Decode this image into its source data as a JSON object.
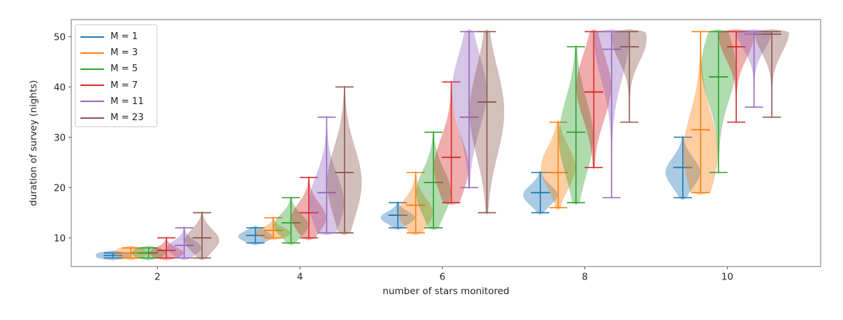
{
  "figure": {
    "background": "#ffffff"
  },
  "chart_data": {
    "type": "violin",
    "title": "",
    "xlabel": "number of stars monitored",
    "ylabel": "duration of survey (nights)",
    "x_ticks": [
      2,
      4,
      6,
      8,
      10
    ],
    "y_ticks": [
      10,
      20,
      30,
      40,
      50
    ],
    "xlim": [
      0.79,
      11.31
    ],
    "ylim": [
      4.3,
      53.4
    ],
    "grid": false,
    "legend_position": "upper left",
    "axis_color": "#8a8a8a",
    "tick_color": "#666666",
    "text_color": "#262626",
    "fill_alpha": 0.38,
    "violin_half_width": 0.24,
    "legend": [
      {
        "label": "M = 1",
        "color": "#1f77b4"
      },
      {
        "label": "M = 3",
        "color": "#ff7f0e"
      },
      {
        "label": "M = 5",
        "color": "#2ca02c"
      },
      {
        "label": "M = 7",
        "color": "#d62728"
      },
      {
        "label": "M = 11",
        "color": "#9467bd"
      },
      {
        "label": "M = 23",
        "color": "#8c564b"
      }
    ],
    "series": [
      {
        "name": "M = 1",
        "color": "#1f77b4",
        "offset": -0.625,
        "violins": [
          {
            "x": 2,
            "min": 6,
            "median": 6.5,
            "max": 7,
            "mode": 6.5
          },
          {
            "x": 4,
            "min": 9,
            "median": 10.5,
            "max": 12,
            "mode": 10.3
          },
          {
            "x": 6,
            "min": 12,
            "median": 14.5,
            "max": 17,
            "mode": 14
          },
          {
            "x": 8,
            "min": 15,
            "median": 19,
            "max": 23,
            "mode": 18.5
          },
          {
            "x": 10,
            "min": 18,
            "median": 24,
            "max": 30,
            "mode": 23
          }
        ]
      },
      {
        "name": "M = 3",
        "color": "#ff7f0e",
        "offset": -0.375,
        "violins": [
          {
            "x": 2,
            "min": 6,
            "median": 7,
            "max": 8,
            "mode": 7
          },
          {
            "x": 4,
            "min": 10,
            "median": 11.5,
            "max": 14,
            "mode": 11
          },
          {
            "x": 6,
            "min": 11,
            "median": 16.5,
            "max": 23,
            "mode": 15
          },
          {
            "x": 8,
            "min": 16,
            "median": 23,
            "max": 33,
            "mode": 24
          },
          {
            "x": 10,
            "min": 19,
            "median": 31.5,
            "max": 51,
            "mode": 27
          }
        ]
      },
      {
        "name": "M = 5",
        "color": "#2ca02c",
        "offset": -0.125,
        "violins": [
          {
            "x": 2,
            "min": 6,
            "median": 7,
            "max": 8,
            "mode": 7
          },
          {
            "x": 4,
            "min": 9,
            "median": 13,
            "max": 18,
            "mode": 12.5
          },
          {
            "x": 6,
            "min": 12,
            "median": 21,
            "max": 31,
            "mode": 19
          },
          {
            "x": 8,
            "min": 17,
            "median": 31,
            "max": 48,
            "mode": 30
          },
          {
            "x": 10,
            "min": 23,
            "median": 42,
            "max": 51,
            "mode": 44
          }
        ]
      },
      {
        "name": "M = 7",
        "color": "#d62728",
        "offset": 0.125,
        "violins": [
          {
            "x": 2,
            "min": 6,
            "median": 7.5,
            "max": 10,
            "mode": 7
          },
          {
            "x": 4,
            "min": 10,
            "median": 15,
            "max": 22,
            "mode": 14
          },
          {
            "x": 6,
            "min": 17,
            "median": 26,
            "max": 41,
            "mode": 24
          },
          {
            "x": 8,
            "min": 24,
            "median": 39,
            "max": 51,
            "mode": 40
          },
          {
            "x": 10,
            "min": 33,
            "median": 48,
            "max": 51,
            "mode": 50
          }
        ]
      },
      {
        "name": "M = 11",
        "color": "#9467bd",
        "offset": 0.375,
        "violins": [
          {
            "x": 2,
            "min": 6,
            "median": 8.5,
            "max": 12,
            "mode": 8
          },
          {
            "x": 4,
            "min": 11,
            "median": 19,
            "max": 34,
            "mode": 17
          },
          {
            "x": 6,
            "min": 20,
            "median": 34,
            "max": 51,
            "mode": 39
          },
          {
            "x": 8,
            "min": 18,
            "median": 47.5,
            "max": 51,
            "mode": 49.5
          },
          {
            "x": 10,
            "min": 36,
            "median": 50.5,
            "max": 51,
            "mode": 51
          }
        ]
      },
      {
        "name": "M = 23",
        "color": "#8c564b",
        "offset": 0.625,
        "violins": [
          {
            "x": 2,
            "min": 6,
            "median": 10,
            "max": 15,
            "mode": 9.5
          },
          {
            "x": 4,
            "min": 11,
            "median": 23,
            "max": 40,
            "mode": 21
          },
          {
            "x": 6,
            "min": 15,
            "median": 37,
            "max": 51,
            "mode": 35
          },
          {
            "x": 8,
            "min": 33,
            "median": 48,
            "max": 51,
            "mode": 49.5
          },
          {
            "x": 10,
            "min": 34,
            "median": 50.5,
            "max": 51,
            "mode": 51
          }
        ]
      }
    ]
  }
}
